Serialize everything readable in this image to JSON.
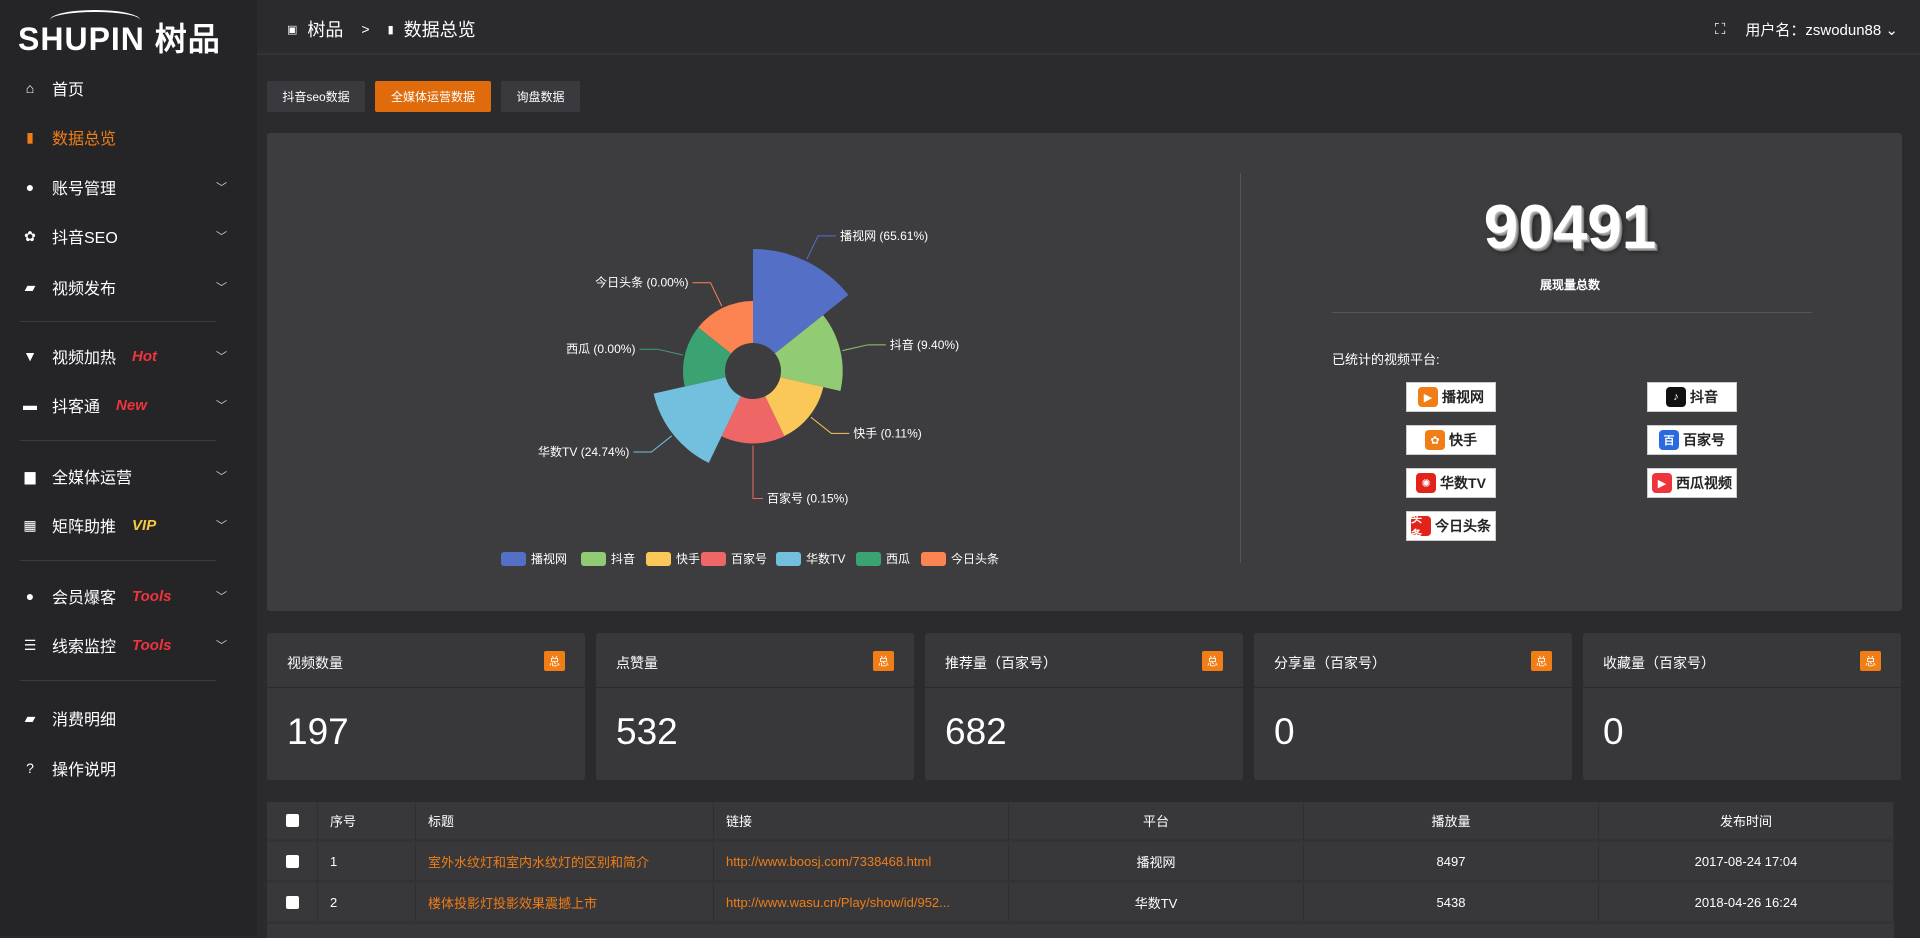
{
  "sidebar": {
    "logo": "SHUPIN 树品",
    "items": [
      {
        "label": "首页",
        "icon": "home-icon",
        "glyph": "⌂"
      },
      {
        "label": "数据总览",
        "icon": "bar-chart-icon",
        "glyph": "▮",
        "active": true
      },
      {
        "label": "账号管理",
        "icon": "user-icon",
        "glyph": "●",
        "chev": true
      },
      {
        "label": "抖音SEO",
        "icon": "gear-icon",
        "glyph": "✿",
        "chev": true
      },
      {
        "label": "视频发布",
        "icon": "camera-icon",
        "glyph": "▰",
        "chev": true
      },
      {
        "label": "视频加热",
        "icon": "monitor-icon",
        "glyph": "▼",
        "chev": true,
        "tag": "Hot",
        "tagColor": "#f0343c"
      },
      {
        "label": "抖客通",
        "icon": "chat-icon",
        "glyph": "▬",
        "chev": true,
        "tag": "New",
        "tagColor": "#f0343c"
      },
      {
        "label": "全媒体运营",
        "icon": "desktop-icon",
        "glyph": "▆",
        "chev": true
      },
      {
        "label": "矩阵助推",
        "icon": "grid-icon",
        "glyph": "▦",
        "chev": true,
        "tag": "VIP",
        "tagColor": "#f6c945"
      },
      {
        "label": "会员爆客",
        "icon": "member-icon",
        "glyph": "●",
        "chev": true,
        "tag": "Tools",
        "tagColor": "#f0343c"
      },
      {
        "label": "线索监控",
        "icon": "sliders-icon",
        "glyph": "☰",
        "chev": true,
        "tag": "Tools",
        "tagColor": "#f0343c"
      },
      {
        "label": "消费明细",
        "icon": "wallet-icon",
        "glyph": "▰"
      },
      {
        "label": "操作说明",
        "icon": "help-icon",
        "glyph": "?"
      }
    ]
  },
  "header": {
    "crumbs": [
      "树品",
      ">",
      "数据总览"
    ],
    "user_label": "用户名：zswodun88"
  },
  "tabs": [
    {
      "label": "抖音seo数据"
    },
    {
      "label": "全媒体运营数据",
      "active": true
    },
    {
      "label": "询盘数据"
    }
  ],
  "chart_data": {
    "type": "pie",
    "rose": "area",
    "categories": [
      "播视网",
      "抖音",
      "快手",
      "百家号",
      "华数TV",
      "西瓜",
      "今日头条"
    ],
    "values": [
      65.61,
      9.4,
      0.11,
      0.15,
      24.74,
      0.0,
      0.0
    ],
    "labels": [
      "播视网 (65.61%)",
      "抖音 (9.40%)",
      "快手 (0.11%)",
      "百家号 (0.15%)",
      "华数TV (24.74%)",
      "西瓜 (0.00%)",
      "今日头条 (0.00%)"
    ],
    "colors": [
      "#5470c6",
      "#91cc75",
      "#fac858",
      "#ee6666",
      "#73c0de",
      "#3ba272",
      "#fc8452"
    ],
    "legend": "bottom"
  },
  "summary": {
    "total": "90491",
    "total_label": "展现量总数",
    "platforms_title": "已统计的视频平台:",
    "platforms": [
      {
        "name": "播视网",
        "color": "#f07d16",
        "mark": "▶"
      },
      {
        "name": "抖音",
        "color": "#111",
        "mark": "♪"
      },
      {
        "name": "快手",
        "color": "#f07d16",
        "mark": "✿"
      },
      {
        "name": "百家号",
        "color": "#2a6ae0",
        "mark": "百"
      },
      {
        "name": "华数TV",
        "color": "#e2231a",
        "mark": "✺"
      },
      {
        "name": "西瓜视频",
        "color": "#f0343c",
        "mark": "▶"
      },
      {
        "name": "今日头条",
        "color": "#e2231a",
        "mark": "头条"
      }
    ]
  },
  "stats": [
    {
      "title": "视频数量",
      "badge": "总",
      "value": "197"
    },
    {
      "title": "点赞量",
      "badge": "总",
      "value": "532"
    },
    {
      "title": "推荐量（百家号）",
      "badge": "总",
      "value": "682"
    },
    {
      "title": "分享量（百家号）",
      "badge": "总",
      "value": "0"
    },
    {
      "title": "收藏量（百家号）",
      "badge": "总",
      "value": "0"
    }
  ],
  "table": {
    "columns": [
      "序号",
      "标题",
      "链接",
      "平台",
      "播放量",
      "发布时间"
    ],
    "rows": [
      {
        "no": "1",
        "title": "室外水纹灯和室内水纹灯的区别和简介",
        "link": "http://www.boosj.com/7338468.html",
        "platform": "播视网",
        "plays": "8497",
        "time": "2017-08-24 17:04"
      },
      {
        "no": "2",
        "title": "楼体投影灯投影效果震撼上市",
        "link": "http://www.wasu.cn/Play/show/id/952...",
        "platform": "华数TV",
        "plays": "5438",
        "time": "2018-04-26 16:24"
      }
    ]
  }
}
